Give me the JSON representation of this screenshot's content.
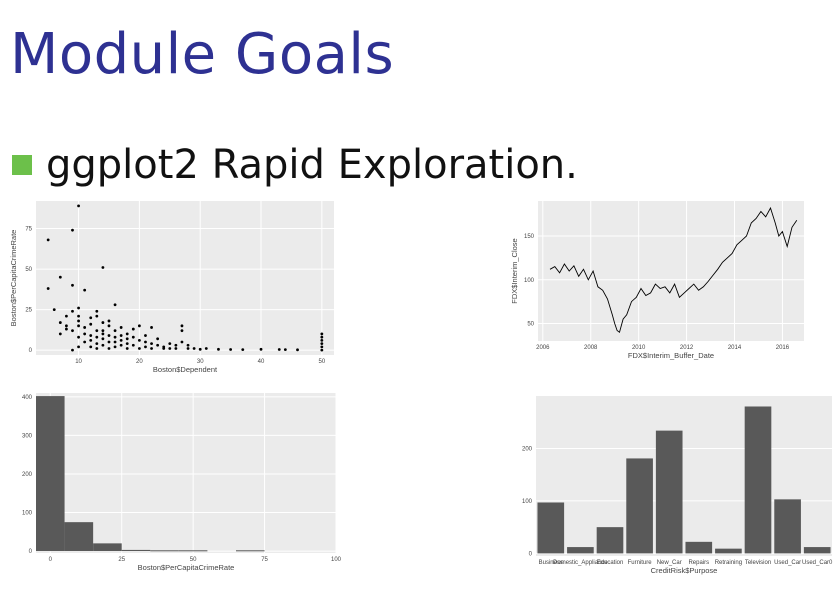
{
  "slide": {
    "title": "Module Goals",
    "bullet": "ggplot2 Rapid Exploration.",
    "accent_color": "#2e3192",
    "bullet_color": "#6cc04a"
  },
  "chart_data": [
    {
      "type": "scatter",
      "xlabel": "Boston$Dependent",
      "ylabel": "Boston$PerCapitaCrimeRate",
      "xlim": [
        3,
        52
      ],
      "ylim": [
        -3,
        92
      ],
      "xticks": [
        10,
        20,
        30,
        40,
        50
      ],
      "yticks": [
        0,
        25,
        50,
        75
      ],
      "points": [
        [
          5,
          68
        ],
        [
          5,
          38
        ],
        [
          6,
          25
        ],
        [
          7,
          45
        ],
        [
          7,
          10
        ],
        [
          7,
          17
        ],
        [
          8,
          13
        ],
        [
          8,
          15
        ],
        [
          8,
          21
        ],
        [
          9,
          74
        ],
        [
          9,
          40
        ],
        [
          9,
          24
        ],
        [
          9,
          0
        ],
        [
          9,
          12
        ],
        [
          10,
          89
        ],
        [
          10,
          26
        ],
        [
          10,
          21
        ],
        [
          10,
          18
        ],
        [
          10,
          8
        ],
        [
          10,
          15
        ],
        [
          10,
          2
        ],
        [
          11,
          37
        ],
        [
          11,
          10
        ],
        [
          11,
          5
        ],
        [
          11,
          14
        ],
        [
          12,
          20
        ],
        [
          12,
          6
        ],
        [
          12,
          9
        ],
        [
          12,
          2
        ],
        [
          12,
          16
        ],
        [
          13,
          21
        ],
        [
          13,
          12
        ],
        [
          13,
          4
        ],
        [
          13,
          8
        ],
        [
          13,
          1
        ],
        [
          13,
          24
        ],
        [
          14,
          51
        ],
        [
          14,
          17
        ],
        [
          14,
          10
        ],
        [
          14,
          7
        ],
        [
          14,
          3
        ],
        [
          14,
          12
        ],
        [
          15,
          15
        ],
        [
          15,
          9
        ],
        [
          15,
          5
        ],
        [
          15,
          1
        ],
        [
          15,
          18
        ],
        [
          16,
          28
        ],
        [
          16,
          5
        ],
        [
          16,
          12
        ],
        [
          16,
          8
        ],
        [
          16,
          2
        ],
        [
          17,
          14
        ],
        [
          17,
          6
        ],
        [
          17,
          3
        ],
        [
          17,
          9
        ],
        [
          18,
          10
        ],
        [
          18,
          4
        ],
        [
          18,
          1
        ],
        [
          18,
          7
        ],
        [
          19,
          8
        ],
        [
          19,
          3
        ],
        [
          19,
          13
        ],
        [
          20,
          15
        ],
        [
          20,
          6
        ],
        [
          20,
          1
        ],
        [
          21,
          5
        ],
        [
          21,
          9
        ],
        [
          21,
          2
        ],
        [
          22,
          4
        ],
        [
          22,
          14
        ],
        [
          22,
          1
        ],
        [
          23,
          3
        ],
        [
          23,
          7
        ],
        [
          24,
          2
        ],
        [
          24,
          1
        ],
        [
          25,
          4
        ],
        [
          25,
          1
        ],
        [
          26,
          1
        ],
        [
          26,
          3
        ],
        [
          27,
          15
        ],
        [
          27,
          12
        ],
        [
          27,
          5
        ],
        [
          28,
          1
        ],
        [
          28,
          3
        ],
        [
          29,
          1
        ],
        [
          30,
          0.5
        ],
        [
          31,
          1
        ],
        [
          33,
          0.5
        ],
        [
          35,
          0.4
        ],
        [
          37,
          0.3
        ],
        [
          40,
          0.5
        ],
        [
          43,
          0.4
        ],
        [
          44,
          0.3
        ],
        [
          46,
          0.2
        ],
        [
          50,
          10
        ],
        [
          50,
          8
        ],
        [
          50,
          6
        ],
        [
          50,
          4
        ],
        [
          50,
          2
        ],
        [
          50,
          0
        ]
      ]
    },
    {
      "type": "line",
      "xlabel": "FDX$Interim_Buffer_Date",
      "ylabel": "FDX$Interim_Close",
      "xlim": [
        2005.8,
        2016.9
      ],
      "ylim": [
        30,
        190
      ],
      "xticks": [
        2006,
        2008,
        2010,
        2012,
        2014,
        2016
      ],
      "yticks": [
        50,
        100,
        150
      ],
      "x": [
        2006.3,
        2006.5,
        2006.7,
        2006.9,
        2007.1,
        2007.3,
        2007.5,
        2007.7,
        2007.9,
        2008.1,
        2008.3,
        2008.5,
        2008.7,
        2008.9,
        2009.0,
        2009.1,
        2009.2,
        2009.35,
        2009.5,
        2009.7,
        2009.9,
        2010.1,
        2010.3,
        2010.5,
        2010.7,
        2010.9,
        2011.1,
        2011.3,
        2011.5,
        2011.7,
        2011.9,
        2012.1,
        2012.3,
        2012.5,
        2012.7,
        2012.9,
        2013.1,
        2013.3,
        2013.5,
        2013.7,
        2013.9,
        2014.1,
        2014.3,
        2014.5,
        2014.7,
        2014.9,
        2015.1,
        2015.3,
        2015.5,
        2015.7,
        2015.85,
        2016.0,
        2016.2,
        2016.4,
        2016.6
      ],
      "y": [
        112,
        115,
        108,
        118,
        110,
        116,
        104,
        112,
        100,
        110,
        92,
        88,
        78,
        60,
        50,
        42,
        40,
        55,
        60,
        75,
        80,
        90,
        82,
        85,
        95,
        90,
        92,
        85,
        95,
        80,
        85,
        90,
        95,
        88,
        92,
        98,
        105,
        112,
        120,
        125,
        130,
        140,
        145,
        150,
        165,
        170,
        178,
        172,
        182,
        165,
        150,
        155,
        138,
        160,
        168
      ]
    },
    {
      "type": "bar",
      "subtype": "histogram",
      "xlabel": "Boston$PerCapitaCrimeRate",
      "ylabel": "",
      "xlim": [
        -5,
        100
      ],
      "ylim": [
        -5,
        410
      ],
      "xticks": [
        0,
        25,
        50,
        75,
        100
      ],
      "yticks": [
        0,
        100,
        200,
        300,
        400
      ],
      "bins": [
        {
          "x0": -5,
          "x1": 5,
          "count": 402
        },
        {
          "x0": 5,
          "x1": 15,
          "count": 75
        },
        {
          "x0": 15,
          "x1": 25,
          "count": 20
        },
        {
          "x0": 25,
          "x1": 35,
          "count": 3
        },
        {
          "x0": 35,
          "x1": 45,
          "count": 2
        },
        {
          "x0": 45,
          "x1": 55,
          "count": 2
        },
        {
          "x0": 55,
          "x1": 65,
          "count": 0
        },
        {
          "x0": 65,
          "x1": 75,
          "count": 2
        },
        {
          "x0": 75,
          "x1": 85,
          "count": 0
        },
        {
          "x0": 85,
          "x1": 95,
          "count": 0
        }
      ]
    },
    {
      "type": "bar",
      "xlabel": "CreditRisk$Purpose",
      "ylabel": "",
      "ylim": [
        -5,
        300
      ],
      "yticks": [
        0,
        100,
        200
      ],
      "categories": [
        "Business",
        "Domestic_Appliance",
        "Education",
        "Furniture",
        "New_Car",
        "Repairs",
        "Retraining",
        "Television",
        "Used_Car",
        "Used_Car0"
      ],
      "values": [
        97,
        12,
        50,
        181,
        234,
        22,
        9,
        280,
        103,
        12
      ]
    }
  ]
}
